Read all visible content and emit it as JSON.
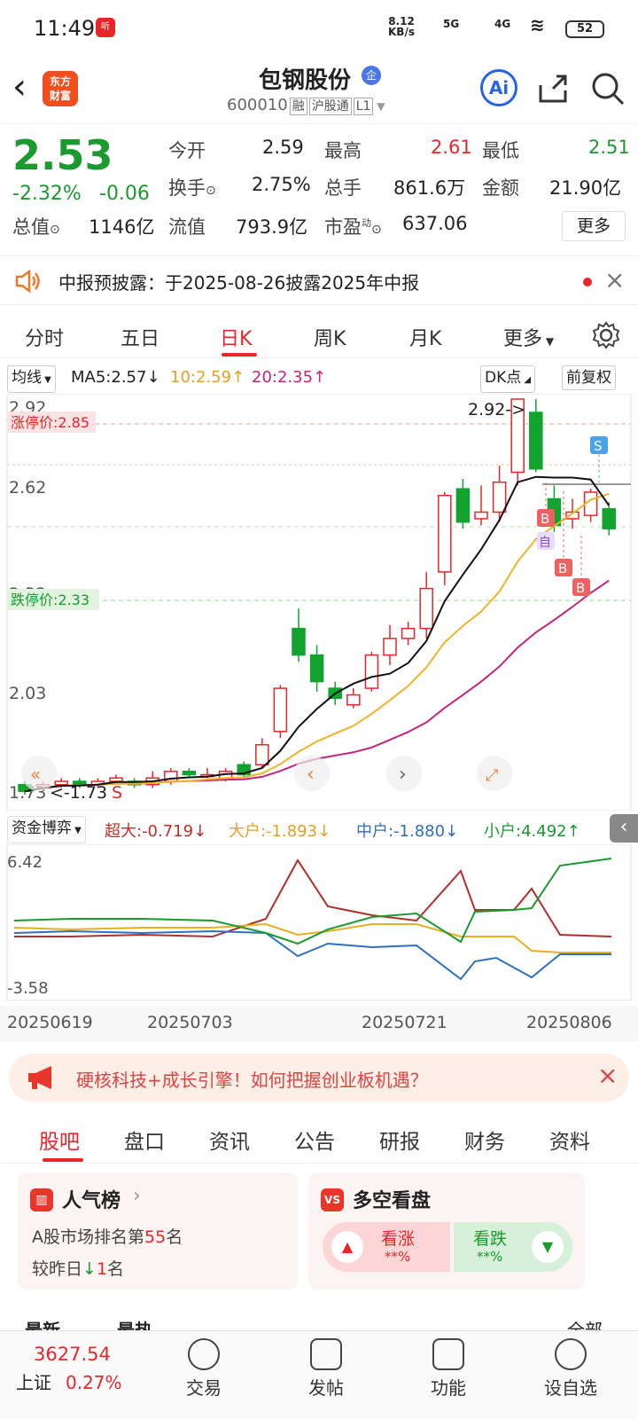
{
  "status": {
    "time": "11:49",
    "notif": "听",
    "speed_top": "8.12",
    "speed_bottom": "KB/s",
    "net1": "5G",
    "net2": "4G",
    "battery": "52"
  },
  "header": {
    "logo_line1": "东方",
    "logo_line2": "财富",
    "title": "包钢股份",
    "qi_badge": "企",
    "code": "600010",
    "tag1": "融",
    "tag2": "沪股通",
    "tag3": "L1",
    "ai": "Ai"
  },
  "quote": {
    "price": "2.53",
    "change_pct": "-2.32%",
    "change": "-0.06",
    "open_label": "今开",
    "open": "2.59",
    "high_label": "最高",
    "high": "2.61",
    "low_label": "最低",
    "low": "2.51",
    "turnover_label": "换手",
    "turnover": "2.75%",
    "volume_label": "总手",
    "volume": "861.6万",
    "amount_label": "金额",
    "amount": "21.90亿",
    "mktcap_label": "总值",
    "mktcap": "1146亿",
    "float_label": "流值",
    "float": "793.9亿",
    "pe_label": "市盈",
    "pe_sup": "动",
    "pe": "637.06",
    "more": "更多"
  },
  "notice": {
    "text": "中报预披露：于2025-08-26披露2025年中报"
  },
  "tabs": [
    "分时",
    "五日",
    "日K",
    "周K",
    "月K",
    "更多"
  ],
  "ma": {
    "type": "均线",
    "ma5": "MA5:2.57↓",
    "ma10": "10:2.59↑",
    "ma20": "20:2.35↑",
    "dk": "DK点",
    "adj": "前复权"
  },
  "kline": {
    "y_top": "2.92",
    "y_mid1": "2.62",
    "y_mid2": "2.32",
    "y_low": "2.03",
    "y_bottom": "1.73",
    "limit_up": "涨停价:2.85",
    "limit_down": "跌停价:2.33",
    "high_marker": "2.92->",
    "low_marker": "<-1.73",
    "s_marker": "S",
    "b_marker": "B",
    "zi_marker": "自"
  },
  "fund": {
    "label": "资金博弈",
    "super": "超大:-0.719↓",
    "big": "大户:-1.893↓",
    "mid": "中户:-1.880↓",
    "small": "小户:4.492↑",
    "y_top": "6.42",
    "y_bottom": "-3.58"
  },
  "dates": [
    "20250619",
    "20250703",
    "20250721",
    "20250806"
  ],
  "ad": {
    "text": "硬核科技+成长引擎！如何把握创业板机遇？"
  },
  "subtabs": [
    "股吧",
    "盘口",
    "资讯",
    "公告",
    "研报",
    "财务",
    "资料"
  ],
  "cards": {
    "rank_title": "人气榜",
    "rank_line1_a": "A股市场排名第",
    "rank_num": "55",
    "rank_line1_b": "名",
    "rank_line2_a": "较昨日",
    "rank_arrow": "↓",
    "rank_delta": "1",
    "rank_line2_b": "名",
    "vs_title": "多空看盘",
    "up_label": "看涨",
    "up_val": "**%",
    "down_label": "看跌",
    "down_val": "**%"
  },
  "list_hint": {
    "latest": "最新",
    "hot": "最热",
    "all": "全部"
  },
  "bottomnav": {
    "index_value": "3627.54",
    "index_name": "上证",
    "index_pct": "0.27%",
    "trade": "交易",
    "post": "发帖",
    "func": "功能",
    "watch": "设自选"
  },
  "chart_data": {
    "type": "candlestick",
    "series": [
      {
        "name": "MA5",
        "value": 2.57
      },
      {
        "name": "MA10",
        "value": 2.59
      },
      {
        "name": "MA20",
        "value": 2.35
      }
    ],
    "ylim": [
      1.73,
      2.92
    ],
    "colors": {
      "up": "#e8262a",
      "down": "#13a32f",
      "ma5": "#111111",
      "ma10": "#f0b429",
      "ma20": "#c8237f"
    }
  }
}
